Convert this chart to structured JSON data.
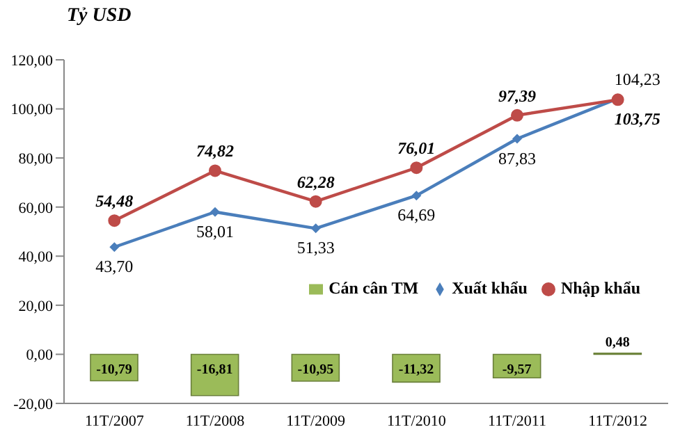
{
  "chart_data": {
    "type": "bar",
    "ylabel": "Tỷ USD",
    "categories": [
      "11T/2007",
      "11T/2008",
      "11T/2009",
      "11T/2010",
      "11T/2011",
      "11T/2012"
    ],
    "series": [
      {
        "name": "Cán cân TM",
        "color": "#9bbb59",
        "values": [
          -10.79,
          -16.81,
          -10.95,
          -11.32,
          -9.57,
          0.48
        ],
        "value_labels": [
          "-10,79",
          "-16,81",
          "-10,95",
          "-11,32",
          "-9,57",
          "0,48"
        ]
      },
      {
        "name": "Xuất khẩu",
        "type": "line",
        "color": "#4a7ebb",
        "marker": "diamond",
        "values": [
          43.7,
          58.01,
          51.33,
          64.69,
          87.83,
          104.23
        ],
        "value_labels": [
          "43,70",
          "58,01",
          "51,33",
          "64,69",
          "87,83",
          "104,23"
        ]
      },
      {
        "name": "Nhập khẩu",
        "type": "line",
        "color": "#be4b48",
        "marker": "circle",
        "values": [
          54.48,
          74.82,
          62.28,
          76.01,
          97.39,
          103.75
        ],
        "value_labels": [
          "54,48",
          "74,82",
          "62,28",
          "76,01",
          "97,39",
          "103,75"
        ]
      }
    ],
    "ylim": [
      -20,
      120
    ],
    "yticks": [
      {
        "value": -20,
        "label": "-20,00"
      },
      {
        "value": 0,
        "label": "0,00"
      },
      {
        "value": 20,
        "label": "20,00"
      },
      {
        "value": 40,
        "label": "40,00"
      },
      {
        "value": 60,
        "label": "60,00"
      },
      {
        "value": 80,
        "label": "80,00"
      },
      {
        "value": 100,
        "label": "100,00"
      },
      {
        "value": 120,
        "label": "120,00"
      }
    ],
    "grid": false,
    "legend": "bottom right"
  }
}
